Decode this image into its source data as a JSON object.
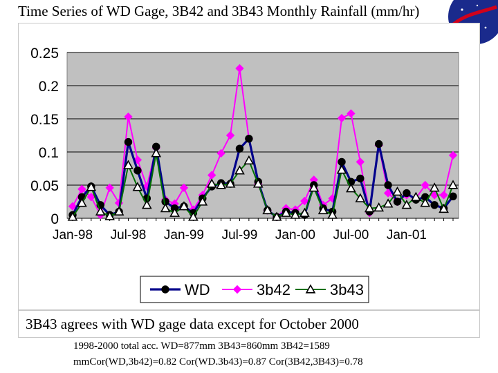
{
  "slide": {
    "title": "Time Series of WD Gage, 3B42 and 3B43 Monthly Rainfall (mm/hr)",
    "note": "3B43 agrees with WD gage data except for October 2000",
    "stats_line1": "1998-2000 total acc. WD=877mm 3B43=860mm 3B42=1589",
    "stats_line2": "mmCor(WD,3b42)=0.82 Cor(WD.3b43)=0.87 Cor(3B42,3B43)=0.78"
  },
  "colors": {
    "plot_bg": "#c0c0c0",
    "wd": "#00008b",
    "b42": "#ff00ff",
    "b43": "#007000",
    "logo": "#1a2a8c"
  },
  "chart_data": {
    "type": "line",
    "title": "",
    "xlabel": "",
    "ylabel": "",
    "ylim": [
      0,
      0.25
    ],
    "yticks": [
      "0",
      "0.05",
      "0.1",
      "0.15",
      "0.2",
      "0.25"
    ],
    "xtick_labels": [
      "Jan-98",
      "Jul-98",
      "Jan-99",
      "Jul-99",
      "Jan-00",
      "Jul-00",
      "Jan-01"
    ],
    "xtick_index": [
      0,
      6,
      12,
      18,
      24,
      30,
      36
    ],
    "months": [
      "Jan-98",
      "Feb-98",
      "Mar-98",
      "Apr-98",
      "May-98",
      "Jun-98",
      "Jul-98",
      "Aug-98",
      "Sep-98",
      "Oct-98",
      "Nov-98",
      "Dec-98",
      "Jan-99",
      "Feb-99",
      "Mar-99",
      "Apr-99",
      "May-99",
      "Jun-99",
      "Jul-99",
      "Aug-99",
      "Sep-99",
      "Oct-99",
      "Nov-99",
      "Dec-99",
      "Jan-00",
      "Feb-00",
      "Mar-00",
      "Apr-00",
      "May-00",
      "Jun-00",
      "Jul-00",
      "Aug-00",
      "Sep-00",
      "Oct-00",
      "Nov-00",
      "Dec-00",
      "Jan-01",
      "Feb-01",
      "Mar-01",
      "Apr-01",
      "May-01",
      "Jun-01"
    ],
    "series": [
      {
        "name": "WD",
        "key": "wd",
        "marker": "circle",
        "values": [
          0.005,
          0.032,
          0.048,
          0.02,
          0.005,
          0.01,
          0.115,
          0.072,
          0.03,
          0.108,
          0.025,
          0.015,
          0.018,
          0.008,
          0.03,
          0.048,
          0.053,
          0.052,
          0.105,
          0.12,
          0.055,
          0.012,
          0.002,
          0.01,
          0.008,
          0.005,
          0.05,
          0.015,
          0.01,
          0.085,
          0.055,
          0.06,
          0.01,
          0.112,
          0.05,
          0.025,
          0.038,
          0.028,
          0.032,
          0.02,
          0.015,
          0.033
        ]
      },
      {
        "name": "3b42",
        "key": "b42",
        "marker": "diamond",
        "values": [
          0.018,
          0.044,
          0.032,
          0.005,
          0.046,
          0.023,
          0.153,
          0.088,
          0.048,
          0.106,
          0.028,
          0.022,
          0.046,
          0.013,
          0.035,
          0.065,
          0.098,
          0.125,
          0.226,
          0.12,
          0.052,
          0.012,
          0.002,
          0.015,
          0.013,
          0.026,
          0.058,
          0.02,
          0.03,
          0.151,
          0.158,
          0.085,
          0.008,
          0.11,
          0.038,
          0.025,
          0.035,
          0.03,
          0.05,
          0.035,
          0.035,
          0.095
        ]
      },
      {
        "name": "3b43",
        "key": "b43",
        "marker": "triangle",
        "values": [
          0.002,
          0.023,
          0.047,
          0.01,
          0.003,
          0.01,
          0.08,
          0.047,
          0.02,
          0.098,
          0.015,
          0.008,
          0.018,
          0.002,
          0.025,
          0.052,
          0.05,
          0.052,
          0.072,
          0.087,
          0.052,
          0.012,
          0.002,
          0.008,
          0.005,
          0.008,
          0.046,
          0.012,
          0.005,
          0.073,
          0.045,
          0.03,
          0.015,
          0.016,
          0.022,
          0.04,
          0.02,
          0.032,
          0.023,
          0.046,
          0.014,
          0.05
        ]
      }
    ],
    "legend": {
      "position": "bottom",
      "entries": [
        "WD",
        "3b42",
        "3b43"
      ]
    }
  }
}
